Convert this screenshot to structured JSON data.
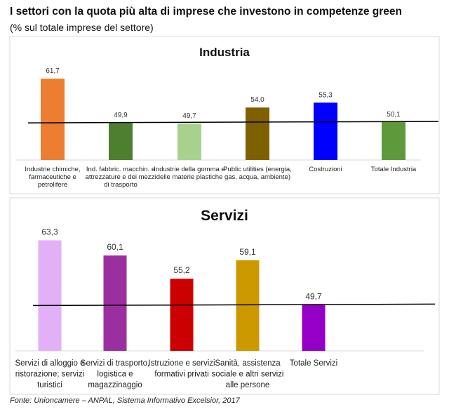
{
  "title": "I settori con la quota più alta di imprese che investono in competenze green",
  "subtitle": "(% sul totale imprese del settore)",
  "source": "Fonte: Unioncamere – ANPAL, Sistema Informativo Excelsior, 2017",
  "chart_data": [
    {
      "type": "bar",
      "title": "Industria",
      "categories": [
        [
          "Industrie chimiche,",
          "farmaceutiche e",
          "petrolifere"
        ],
        [
          "Ind. fabbric. macchin. e",
          "attrezzature e dei mezzi",
          "di trasporto"
        ],
        [
          "Industrie della gomma e",
          "delle materie plastiche"
        ],
        [
          "Public utilities (energia,",
          "gas, acqua, ambiente)"
        ],
        [
          "Costruzioni"
        ],
        [
          "Totale Industria"
        ]
      ],
      "values": [
        61.7,
        49.9,
        49.7,
        54.0,
        55.3,
        50.1
      ],
      "labels": [
        "61,7",
        "49,9",
        "49,7",
        "54,0",
        "55,3",
        "50,1"
      ],
      "colors": [
        "#ED7D31",
        "#4E7F2E",
        "#A9D18E",
        "#7F6000",
        "#0000FF",
        "#5E9A3C"
      ],
      "reference_line": 50.1,
      "ylim": [
        40,
        65
      ],
      "grid": false
    },
    {
      "type": "bar",
      "title": "Servizi",
      "categories": [
        [
          "Servizi di alloggio e",
          "ristorazione; servizi",
          "turistici"
        ],
        [
          "Servizi di trasporto,",
          "logistica e",
          "magazzinaggio"
        ],
        [
          "Istruzione e servizi",
          "formativi privati"
        ],
        [
          "Sanità, assistenza",
          "sociale e altri servizi",
          "alle persone"
        ],
        [
          "Totale Servizi"
        ]
      ],
      "values": [
        63.3,
        60.1,
        55.2,
        59.1,
        49.7
      ],
      "labels": [
        "63,3",
        "60,1",
        "55,2",
        "59,1",
        "49,7"
      ],
      "colors": [
        "#E2B0F7",
        "#9C2FA0",
        "#CC0000",
        "#CC9900",
        "#9400C8"
      ],
      "reference_line": 49.7,
      "ylim": [
        40,
        65
      ],
      "grid": false
    }
  ]
}
